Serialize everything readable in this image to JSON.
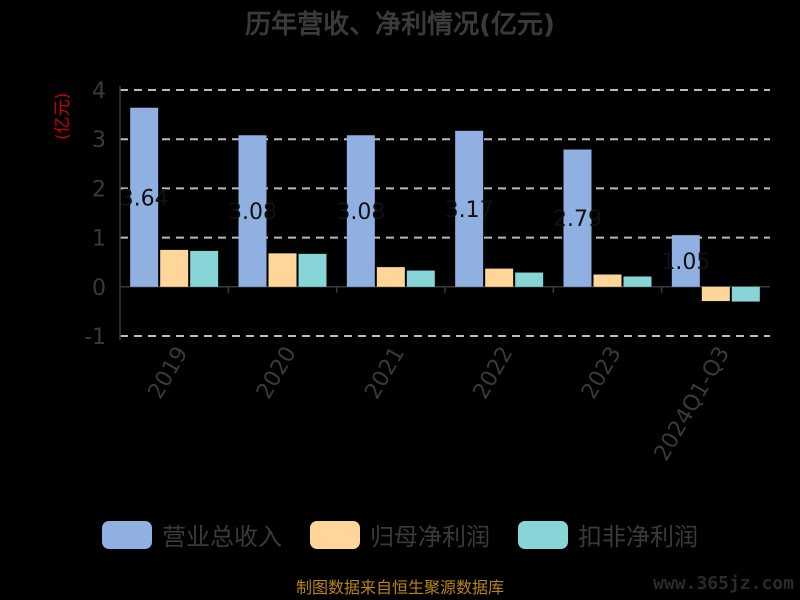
{
  "chart_data": {
    "type": "bar",
    "title": "历年营收、净利情况(亿元)",
    "unit_label": "(亿元)",
    "categories": [
      "2019",
      "2020",
      "2021",
      "2022",
      "2023",
      "2024Q1-Q3"
    ],
    "series": [
      {
        "name": "营业总收入",
        "color": "#8fb0e0",
        "values": [
          3.64,
          3.08,
          3.08,
          3.17,
          2.79,
          1.05
        ],
        "labels": [
          "3.64",
          "3.08",
          "3.08",
          "3.17",
          "2.79",
          "1.05"
        ]
      },
      {
        "name": "归母净利润",
        "color": "#ffd699",
        "values": [
          0.75,
          0.68,
          0.4,
          0.37,
          0.25,
          -0.29
        ]
      },
      {
        "name": "扣非净利润",
        "color": "#88d5d8",
        "values": [
          0.73,
          0.67,
          0.33,
          0.29,
          0.21,
          -0.3
        ]
      }
    ],
    "ylim": [
      -1,
      4
    ],
    "yticks": [
      "4",
      "3",
      "2",
      "1",
      "0",
      "-1"
    ],
    "grid": true,
    "legend_position": "bottom"
  },
  "source_text": "制图数据来自恒生聚源数据库",
  "watermark_text": "www.365jz.com"
}
